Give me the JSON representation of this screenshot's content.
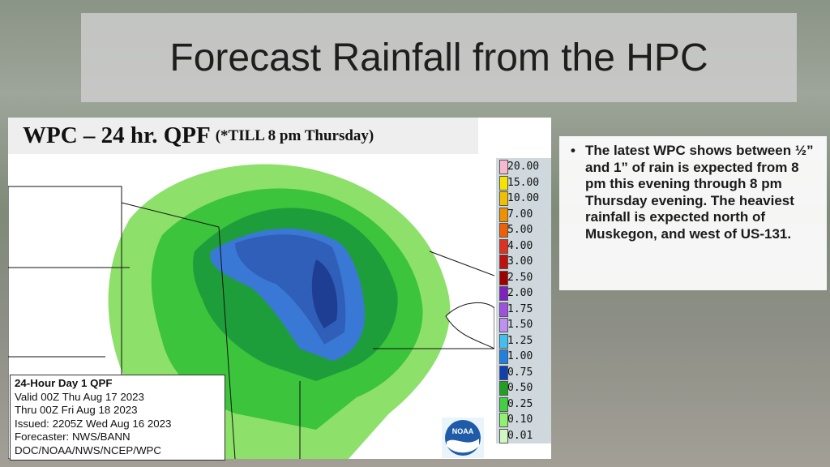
{
  "slide": {
    "title": "Forecast Rainfall from the HPC"
  },
  "map": {
    "header": "WPC – 24 hr. QPF",
    "header_note": "(*TILL  8 pm Thursday)",
    "legend": [
      "20.00",
      "15.00",
      "10.00",
      "7.00",
      "5.00",
      "4.00",
      "3.00",
      "2.50",
      "2.00",
      "1.75",
      "1.50",
      "1.25",
      "1.00",
      "0.75",
      "0.50",
      "0.25",
      "0.10",
      "0.01"
    ],
    "info": [
      "24-Hour Day 1 QPF",
      "Valid 00Z Thu Aug 17 2023",
      "Thru 00Z Fri Aug 18 2023",
      "Issued: 2205Z Wed Aug 16 2023",
      "Forecaster: NWS/BANN",
      "DOC/NOAA/NWS/NCEP/WPC"
    ],
    "logo": "NOAA"
  },
  "bullet": {
    "text": "The latest WPC shows between ½” and 1” of rain is expected from 8 pm this evening through 8 pm Thursday evening.  The heaviest rainfall is expected north of Muskegon, and west of US-131."
  }
}
